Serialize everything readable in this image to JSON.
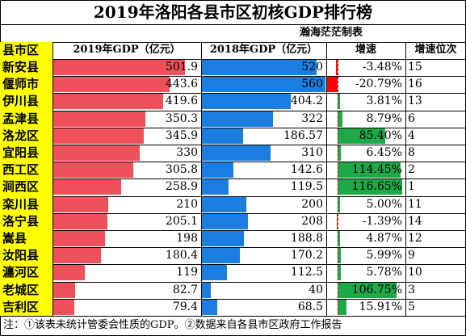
{
  "title": "2019年洛阳各县市区初核GDP排行榜",
  "author": "瀚海茫茫制表",
  "note": "注：①该表未统计管委会性质的GDP。②数据来自各县市区政府工作报告",
  "colors": {
    "bar2019": "#f0505a",
    "bar2018": "#1a7ee0",
    "growthPos": "#1fa847",
    "growthNeg": "#ff0000",
    "name_bg": "#ffff00",
    "grid": "#000000"
  },
  "chart_data": {
    "type": "table",
    "columns": [
      "县市区",
      "2019年GDP（亿元）",
      "2018年GDP（亿元）",
      "增速",
      "增速位次"
    ],
    "rows": [
      {
        "name": "新安县",
        "gdp2019": "501.9",
        "gdp2018": "520",
        "growth": "-3.48%",
        "growth_value": -3.48,
        "rank": "15"
      },
      {
        "name": "偃师市",
        "gdp2019": "443.6",
        "gdp2018": "560",
        "growth": "-20.79%",
        "growth_value": -20.79,
        "rank": "16"
      },
      {
        "name": "伊川县",
        "gdp2019": "419.6",
        "gdp2018": "404.2",
        "growth": "3.81%",
        "growth_value": 3.81,
        "rank": "13"
      },
      {
        "name": "孟津县",
        "gdp2019": "350.3",
        "gdp2018": "322",
        "growth": "8.79%",
        "growth_value": 8.79,
        "rank": "6"
      },
      {
        "name": "洛龙区",
        "gdp2019": "345.9",
        "gdp2018": "186.57",
        "growth": "85.40%",
        "growth_value": 85.4,
        "rank": "4"
      },
      {
        "name": "宜阳县",
        "gdp2019": "330",
        "gdp2018": "310",
        "growth": "6.45%",
        "growth_value": 6.45,
        "rank": "8"
      },
      {
        "name": "西工区",
        "gdp2019": "305.8",
        "gdp2018": "142.6",
        "growth": "114.45%",
        "growth_value": 114.45,
        "rank": "2"
      },
      {
        "name": "涧西区",
        "gdp2019": "258.9",
        "gdp2018": "119.5",
        "growth": "116.65%",
        "growth_value": 116.65,
        "rank": "1"
      },
      {
        "name": "栾川县",
        "gdp2019": "210",
        "gdp2018": "200",
        "growth": "5.00%",
        "growth_value": 5.0,
        "rank": "11"
      },
      {
        "name": "洛宁县",
        "gdp2019": "205.1",
        "gdp2018": "208",
        "growth": "-1.39%",
        "growth_value": -1.39,
        "rank": "14"
      },
      {
        "name": "嵩县",
        "gdp2019": "198",
        "gdp2018": "188.8",
        "growth": "4.87%",
        "growth_value": 4.87,
        "rank": "12"
      },
      {
        "name": "汝阳县",
        "gdp2019": "180.4",
        "gdp2018": "170.2",
        "growth": "5.99%",
        "growth_value": 5.99,
        "rank": "9"
      },
      {
        "name": "瀍河区",
        "gdp2019": "119",
        "gdp2018": "112.5",
        "growth": "5.78%",
        "growth_value": 5.78,
        "rank": "10"
      },
      {
        "name": "老城区",
        "gdp2019": "82.7",
        "gdp2018": "40",
        "growth": "106.75%",
        "growth_value": 106.75,
        "rank": "3"
      },
      {
        "name": "吉利区",
        "gdp2019": "79.4",
        "gdp2018": "68.5",
        "growth": "15.91%",
        "growth_value": 15.91,
        "rank": "5"
      }
    ],
    "gdp_max": 560,
    "growth_max": 116.65,
    "growth_min": -20.79
  }
}
